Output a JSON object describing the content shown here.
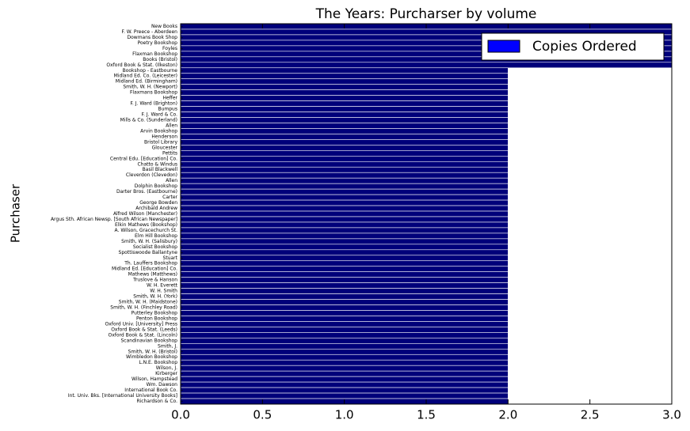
{
  "chart_data": {
    "type": "barh",
    "title": "The Years: Purcharser by volume",
    "ylabel": "Purchaser",
    "categories": [
      "New Books",
      "F. W. Preece - Aberdeen",
      "Dowmans Book Shop",
      "Poetry Bookshop",
      "Foyles",
      "Flaxman Bookshop",
      "Books (Bristol)",
      "Oxford Book & Stat. (Ilkeston)",
      "Bookshop - Eastbourne",
      "Midland Ed. Co. (Leicester)",
      "Midland Ed. (Birmingham)",
      "Smith, W. H. (Newport)",
      "Flaxmans Bookshop",
      "Heffer",
      "F. J. Ward (Brighton)",
      "Bumpus",
      "F. J. Ward & Co.",
      "Mills & Co. (Sunderland)",
      "Allen",
      "Arvin Bookshop",
      "Henderson",
      "Bristol Library",
      "Gloucester",
      "Pettits",
      "Central Edu. [Education] Co.",
      "Chatto & Windus",
      "Basil Blackwell",
      "Cleverdon (Clevedon)",
      "Allen",
      "Dolphin Bookshop",
      "Darter Bros. (Eastbourne)",
      "Carter",
      "George Bowden",
      "Archibald Andrew",
      "Alfred Wilson (Manchester)",
      "Argus Sth. African Newsp. [South African Newspaper]",
      "Elkin Mathews (Bookshop)",
      "A. Wilson, Gracechurch St.",
      "Elm Hill Bookshop",
      "Smith, W. H. (Salisbury)",
      "Socialist Bookshop",
      "Spottiswoode Ballantyne",
      "Stuart",
      "Th. Lauffers Bookshop",
      "Midland Ed. [Education] Co.",
      "Mathews (Matthews)",
      "Truslove & Hanson",
      "W. H. Everett",
      "W. H. Smith",
      "Smith, W. H. (York)",
      "Smith, W. H. (Maidstone)",
      "Smith, W. H. (Finchley Road)",
      "Putterley Bookshop",
      "Penton Bookshop",
      "Oxford Univ. [University] Press",
      "Oxford Book & Stat. (Leeds)",
      "Oxford Book & Stat. (Lincoln)",
      "Scandinavian Bookshop",
      "Smith, J.",
      "Smith, W. H. (Bristol)",
      "Wimbledon Bookshop",
      "L.N.E. Bookshop",
      "Wilson, J.",
      "Kirberger",
      "Wilson, Hampstead",
      "Wm. Dawson",
      "International Book Co.",
      "Int. Univ. Bks. [International University Books]",
      "Richardson & Co."
    ],
    "series": [
      {
        "name": "Copies Ordered",
        "color": "#00007a",
        "legend_color": "#0000ff",
        "values": [
          3,
          3,
          3,
          3,
          3,
          3,
          3,
          3,
          2,
          2,
          2,
          2,
          2,
          2,
          2,
          2,
          2,
          2,
          2,
          2,
          2,
          2,
          2,
          2,
          2,
          2,
          2,
          2,
          2,
          2,
          2,
          2,
          2,
          2,
          2,
          2,
          2,
          2,
          2,
          2,
          2,
          2,
          2,
          2,
          2,
          2,
          2,
          2,
          2,
          2,
          2,
          2,
          2,
          2,
          2,
          2,
          2,
          2,
          2,
          2,
          2,
          2,
          2,
          2,
          2,
          2,
          2,
          2,
          2
        ]
      }
    ],
    "xlim": [
      0,
      3
    ],
    "xticks": [
      {
        "value": 0,
        "label": "0.0"
      },
      0.5,
      {
        "value": 1,
        "label": "1.0"
      },
      1.5,
      {
        "value": 2,
        "label": "2.0"
      },
      2.5,
      {
        "value": 3,
        "label": "3.0"
      }
    ],
    "legend": "upper right"
  }
}
